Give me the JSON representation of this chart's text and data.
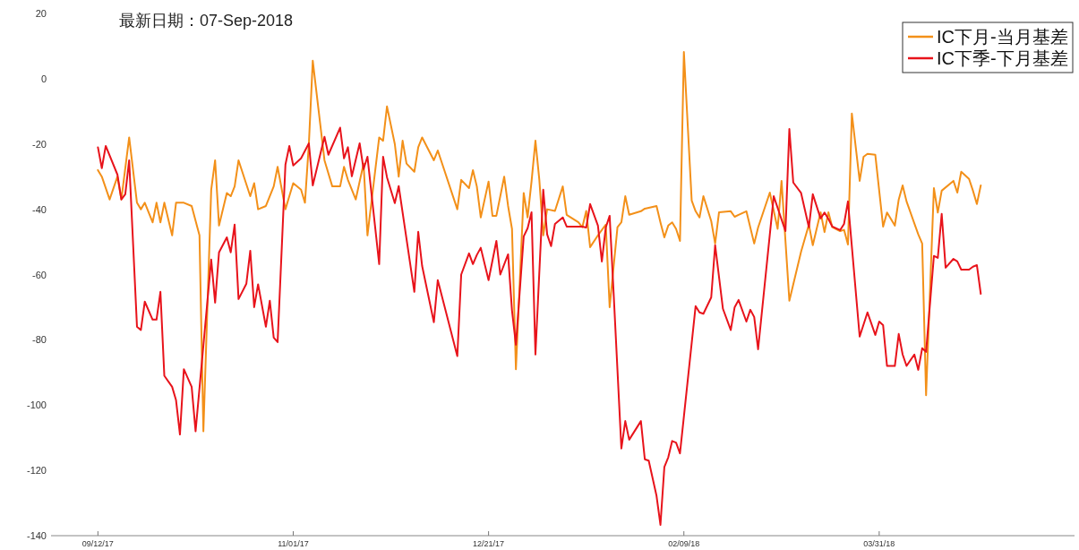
{
  "chart_data": {
    "type": "line",
    "title": "最新日期：07-Sep-2018",
    "xlim": [
      "2017-08-31",
      "2018-05-20"
    ],
    "xticks": [
      {
        "value": "2017-09-12",
        "label": "09/12/17"
      },
      {
        "value": "2017-11-01",
        "label": "11/01/17"
      },
      {
        "value": "2017-12-21",
        "label": "12/21/17"
      },
      {
        "value": "2018-02-09",
        "label": "02/09/18"
      },
      {
        "value": "2018-03-31",
        "label": "03/31/18"
      }
    ],
    "ylim": [
      -140,
      20
    ],
    "yticks": [
      -140,
      -120,
      -100,
      -80,
      -60,
      -40,
      -20,
      0,
      20
    ],
    "grid": false,
    "legend": "top right",
    "marker": "none",
    "line_style": "solid",
    "series": [
      {
        "name": "IC下月-当月基差",
        "color": "#f39019",
        "x": [
          "2017-09-12",
          "2017-09-13",
          "2017-09-15",
          "2017-09-17",
          "2017-09-18",
          "2017-09-20",
          "2017-09-22",
          "2017-09-23",
          "2017-09-24",
          "2017-09-26",
          "2017-09-27",
          "2017-09-28",
          "2017-09-29",
          "2017-10-01",
          "2017-10-02",
          "2017-10-04",
          "2017-10-06",
          "2017-10-08",
          "2017-10-09",
          "2017-10-11",
          "2017-10-12",
          "2017-10-13",
          "2017-10-15",
          "2017-10-16",
          "2017-10-17",
          "2017-10-18",
          "2017-10-21",
          "2017-10-22",
          "2017-10-23",
          "2017-10-25",
          "2017-10-27",
          "2017-10-28",
          "2017-10-30",
          "2017-10-31",
          "2017-11-01",
          "2017-11-03",
          "2017-11-04",
          "2017-11-05",
          "2017-11-06",
          "2017-11-09",
          "2017-11-11",
          "2017-11-13",
          "2017-11-14",
          "2017-11-15",
          "2017-11-17",
          "2017-11-19",
          "2017-11-20",
          "2017-11-23",
          "2017-11-24",
          "2017-11-25",
          "2017-11-27",
          "2017-11-28",
          "2017-11-29",
          "2017-11-30",
          "2017-12-02",
          "2017-12-03",
          "2017-12-04",
          "2017-12-07",
          "2017-12-08",
          "2017-12-13",
          "2017-12-14",
          "2017-12-16",
          "2017-12-17",
          "2017-12-18",
          "2017-12-19",
          "2017-12-21",
          "2017-12-22",
          "2017-12-23",
          "2017-12-25",
          "2017-12-26",
          "2017-12-27",
          "2017-12-28",
          "2017-12-30",
          "2017-12-31",
          "2018-01-01",
          "2018-01-02",
          "2018-01-03",
          "2018-01-04",
          "2018-01-05",
          "2018-01-07",
          "2018-01-09",
          "2018-01-10",
          "2018-01-13",
          "2018-01-14",
          "2018-01-15",
          "2018-01-16",
          "2018-01-18",
          "2018-01-20",
          "2018-01-21",
          "2018-01-23",
          "2018-01-24",
          "2018-01-25",
          "2018-01-26",
          "2018-01-29",
          "2018-01-30",
          "2018-02-02",
          "2018-02-03",
          "2018-02-04",
          "2018-02-05",
          "2018-02-06",
          "2018-02-07",
          "2018-02-08",
          "2018-02-09",
          "2018-02-11",
          "2018-02-12",
          "2018-02-13",
          "2018-02-14",
          "2018-02-16",
          "2018-02-17",
          "2018-02-18",
          "2018-02-21",
          "2018-02-22",
          "2018-02-23",
          "2018-02-25",
          "2018-02-27",
          "2018-02-28",
          "2018-03-03",
          "2018-03-05",
          "2018-03-06",
          "2018-03-08",
          "2018-03-11",
          "2018-03-13",
          "2018-03-14",
          "2018-03-16",
          "2018-03-17",
          "2018-03-18",
          "2018-03-19",
          "2018-03-21",
          "2018-03-22",
          "2018-03-23",
          "2018-03-24",
          "2018-03-26",
          "2018-03-27",
          "2018-03-28",
          "2018-03-30",
          "2018-04-01",
          "2018-04-02",
          "2018-04-04",
          "2018-04-05",
          "2018-04-06",
          "2018-04-07",
          "2018-04-10",
          "2018-04-11",
          "2018-04-12",
          "2018-04-14",
          "2018-04-15",
          "2018-04-16",
          "2018-04-19",
          "2018-04-20",
          "2018-04-21",
          "2018-04-23",
          "2018-04-24",
          "2018-04-25",
          "2018-04-26"
        ],
        "values": [
          -28,
          -30,
          -37,
          -30,
          -37,
          -18,
          -38,
          -40,
          -38,
          -44,
          -38,
          -44,
          -38,
          -48,
          -38,
          -38,
          -39,
          -48,
          -108,
          -34,
          -25,
          -45,
          -35,
          -36,
          -33,
          -25,
          -36,
          -32,
          -40,
          -39,
          -33,
          -27,
          -40,
          -36,
          -32,
          -34,
          -38,
          -20,
          5.5,
          -25,
          -33,
          -33,
          -27,
          -31,
          -37,
          -26,
          -48,
          -18,
          -19,
          -8.5,
          -20,
          -30,
          -19,
          -26,
          -28.5,
          -21,
          -18,
          -25,
          -22,
          -40,
          -31,
          -33.5,
          -28,
          -33,
          -42.5,
          -31.5,
          -42,
          -42,
          -30,
          -39,
          -46,
          -89,
          -35,
          -42.5,
          -31.5,
          -19,
          -31,
          -48,
          -40,
          -40.5,
          -33,
          -41.7,
          -44,
          -45.5,
          -40.5,
          -51.6,
          -48,
          -44.7,
          -70,
          -45.5,
          -44,
          -36,
          -41.7,
          -40.6,
          -39.8,
          -39,
          -44,
          -48.6,
          -45,
          -44,
          -46,
          -49.7,
          8.2,
          -37.3,
          -40.6,
          -42.5,
          -36,
          -43.6,
          -50.5,
          -40.9,
          -40.6,
          -42.3,
          -41.7,
          -40.6,
          -50.5,
          -45.6,
          -34.9,
          -46,
          -31.3,
          -68,
          -53,
          -44.7,
          -51,
          -40.9,
          -47,
          -40.9,
          -45.5,
          -46.7,
          -46.3,
          -50.8,
          -10.7,
          -31.3,
          -23.9,
          -23,
          -23.3,
          -45.3,
          -41,
          -45,
          -37,
          -32.7,
          -37.6,
          -47.7,
          -50.5,
          -97,
          -33.5,
          -41,
          -34.3,
          -31.3,
          -34.9,
          -28.5,
          -30.7,
          -34.3,
          -38.4,
          -32.7
        ]
      },
      {
        "name": "IC下季-下月基差",
        "color": "#e8131b",
        "x": [
          "2017-09-12",
          "2017-09-13",
          "2017-09-14",
          "2017-09-17",
          "2017-09-18",
          "2017-09-19",
          "2017-09-20",
          "2017-09-22",
          "2017-09-23",
          "2017-09-24",
          "2017-09-26",
          "2017-09-27",
          "2017-09-28",
          "2017-09-29",
          "2017-10-01",
          "2017-10-02",
          "2017-10-03",
          "2017-10-04",
          "2017-10-06",
          "2017-10-07",
          "2017-10-11",
          "2017-10-12",
          "2017-10-13",
          "2017-10-15",
          "2017-10-16",
          "2017-10-17",
          "2017-10-18",
          "2017-10-20",
          "2017-10-21",
          "2017-10-22",
          "2017-10-23",
          "2017-10-25",
          "2017-10-26",
          "2017-10-27",
          "2017-10-28",
          "2017-10-30",
          "2017-10-31",
          "2017-11-01",
          "2017-11-03",
          "2017-11-05",
          "2017-11-06",
          "2017-11-09",
          "2017-11-10",
          "2017-11-13",
          "2017-11-14",
          "2017-11-15",
          "2017-11-16",
          "2017-11-18",
          "2017-11-19",
          "2017-11-20",
          "2017-11-23",
          "2017-11-24",
          "2017-11-25",
          "2017-11-27",
          "2017-11-28",
          "2017-12-02",
          "2017-12-03",
          "2017-12-04",
          "2017-12-07",
          "2017-12-08",
          "2017-12-13",
          "2017-12-14",
          "2017-12-16",
          "2017-12-17",
          "2017-12-18",
          "2017-12-19",
          "2017-12-21",
          "2017-12-23",
          "2017-12-24",
          "2017-12-26",
          "2017-12-27",
          "2017-12-28",
          "2017-12-30",
          "2017-12-31",
          "2018-01-01",
          "2018-01-02",
          "2018-01-04",
          "2018-01-05",
          "2018-01-06",
          "2018-01-07",
          "2018-01-09",
          "2018-01-10",
          "2018-01-14",
          "2018-01-15",
          "2018-01-16",
          "2018-01-18",
          "2018-01-19",
          "2018-01-20",
          "2018-01-21",
          "2018-01-22",
          "2018-01-24",
          "2018-01-25",
          "2018-01-26",
          "2018-01-29",
          "2018-01-30",
          "2018-01-31",
          "2018-02-02",
          "2018-02-03",
          "2018-02-04",
          "2018-02-05",
          "2018-02-06",
          "2018-02-07",
          "2018-02-08",
          "2018-02-12",
          "2018-02-13",
          "2018-02-14",
          "2018-02-16",
          "2018-02-17",
          "2018-02-19",
          "2018-02-21",
          "2018-02-22",
          "2018-02-23",
          "2018-02-25",
          "2018-02-26",
          "2018-02-27",
          "2018-02-28",
          "2018-03-04",
          "2018-03-07",
          "2018-03-08",
          "2018-03-09",
          "2018-03-11",
          "2018-03-13",
          "2018-03-14",
          "2018-03-16",
          "2018-03-17",
          "2018-03-18",
          "2018-03-19",
          "2018-03-21",
          "2018-03-22",
          "2018-03-23",
          "2018-03-26",
          "2018-03-28",
          "2018-03-30",
          "2018-03-31",
          "2018-04-01",
          "2018-04-02",
          "2018-04-04",
          "2018-04-05",
          "2018-04-06",
          "2018-04-07",
          "2018-04-09",
          "2018-04-10",
          "2018-04-11",
          "2018-04-12",
          "2018-04-14",
          "2018-04-15",
          "2018-04-16",
          "2018-04-17",
          "2018-04-19",
          "2018-04-20",
          "2018-04-21",
          "2018-04-23",
          "2018-04-24",
          "2018-04-25",
          "2018-04-26"
        ],
        "values": [
          -21,
          -27.4,
          -20.6,
          -29.4,
          -37,
          -35.4,
          -25,
          -76,
          -77,
          -68.3,
          -73.8,
          -73.8,
          -65.3,
          -91,
          -94.4,
          -98.5,
          -109,
          -89,
          -94.4,
          -108,
          -55.4,
          -68.6,
          -53.2,
          -48.6,
          -53.2,
          -44.7,
          -67.5,
          -62.8,
          -52.7,
          -70,
          -63,
          -76,
          -68,
          -79.3,
          -80.7,
          -26.3,
          -20.6,
          -26.6,
          -24.4,
          -19.8,
          -32.7,
          -17.8,
          -23.3,
          -15,
          -24.4,
          -21,
          -29.9,
          -19.8,
          -27.7,
          -23.9,
          -56.8,
          -23.9,
          -30.2,
          -38.1,
          -32.9,
          -65.3,
          -46.9,
          -57.4,
          -74.6,
          -61.7,
          -85,
          -60,
          -53.5,
          -56.8,
          -54,
          -51.8,
          -61.7,
          -49.7,
          -60,
          -53.8,
          -71,
          -81.5,
          -48.3,
          -45.8,
          -40.9,
          -84.5,
          -34,
          -47.7,
          -51.3,
          -44.5,
          -42.5,
          -45.3,
          -45.3,
          -45.6,
          -38.4,
          -45,
          -56,
          -45.6,
          -42,
          -65.3,
          -113.3,
          -104.9,
          -110.6,
          -104.9,
          -116.6,
          -117,
          -127.8,
          -136.7,
          -119,
          -116,
          -111,
          -111.5,
          -114.8,
          -69.7,
          -71.6,
          -72,
          -67,
          -51,
          -70.5,
          -77,
          -70,
          -67.8,
          -74.4,
          -70.8,
          -73,
          -82.9,
          -36,
          -46.7,
          -15.4,
          -31.8,
          -35,
          -45.5,
          -35.4,
          -42.8,
          -41,
          -43,
          -45.3,
          -46.4,
          -44.5,
          -37.6,
          -79,
          -71.6,
          -78.5,
          -74.4,
          -75.5,
          -88,
          -88,
          -78.2,
          -84.5,
          -88,
          -84.5,
          -89.2,
          -82.6,
          -83.7,
          -54.3,
          -54.9,
          -41.4,
          -57.9,
          -55.2,
          -56,
          -58.5,
          -58.5,
          -57.6,
          -57.1,
          -65.9
        ]
      }
    ]
  }
}
